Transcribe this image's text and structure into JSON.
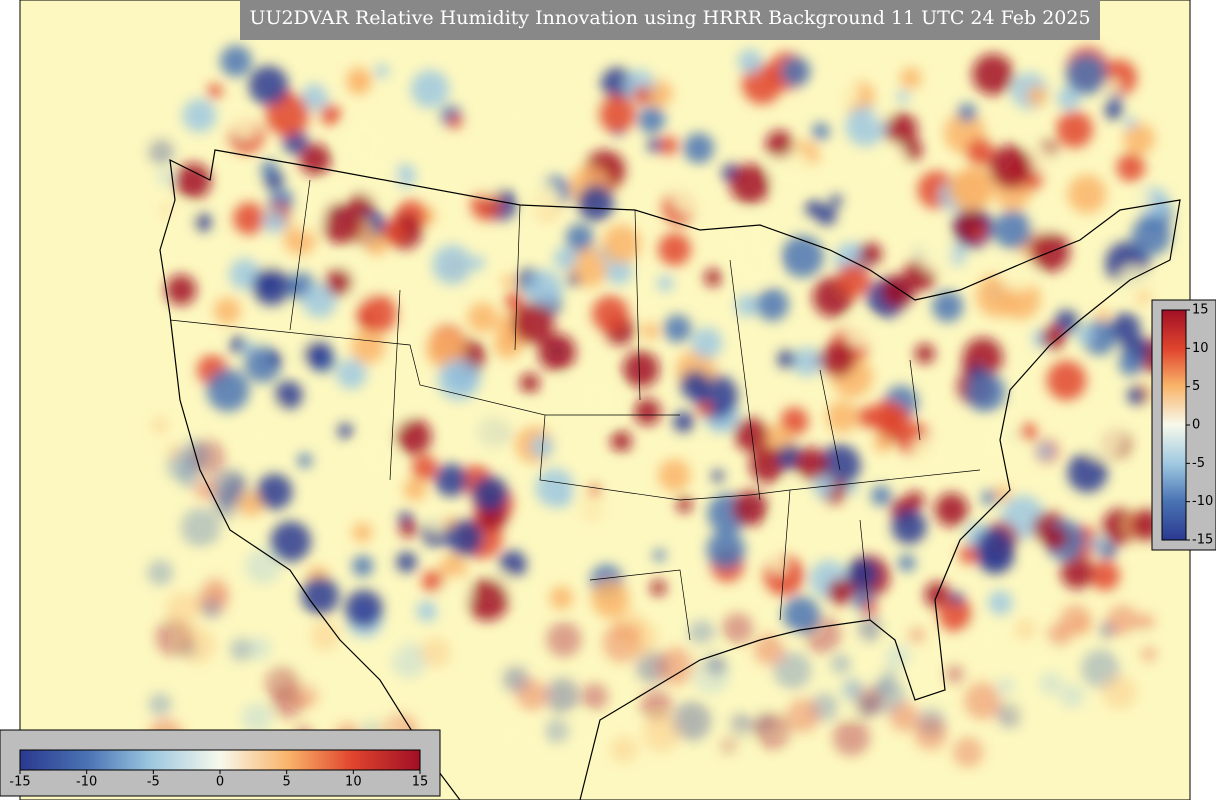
{
  "title": "UU2DVAR Relative Humidity Innovation using HRRR Background 11 UTC 24 Feb 2025",
  "colorbars": [
    {
      "orientation": "horizontal",
      "range": [
        -15,
        15
      ],
      "ticks": [
        -15,
        -10,
        -5,
        0,
        5,
        10,
        15
      ]
    },
    {
      "orientation": "vertical",
      "range": [
        -15,
        15
      ],
      "ticks": [
        15,
        10,
        5,
        0,
        -5,
        -10,
        -15
      ]
    }
  ]
}
